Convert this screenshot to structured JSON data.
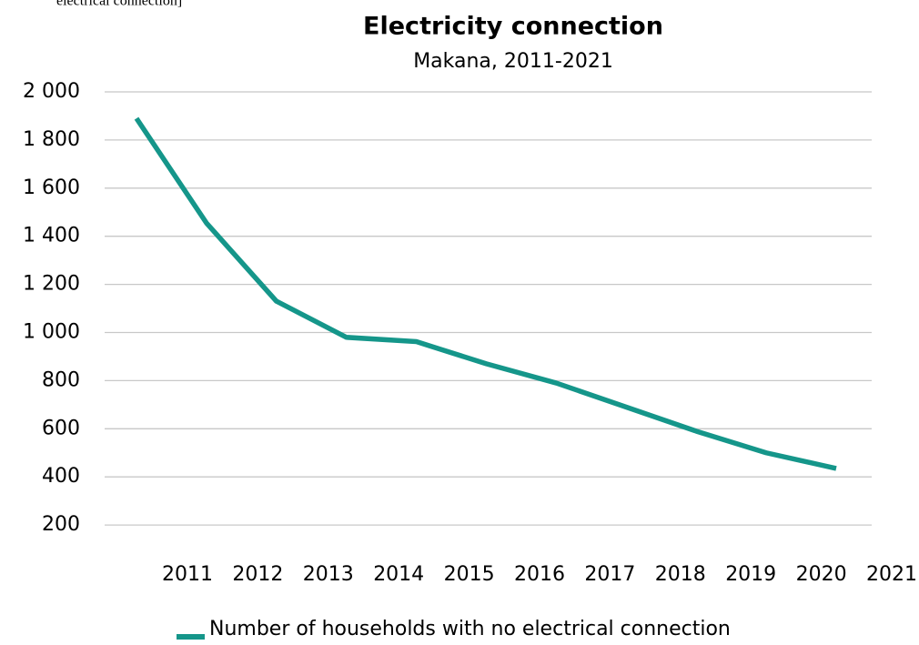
{
  "chart_data": {
    "type": "line",
    "note": "electrical connection]",
    "title": "Electricity connection",
    "subtitle": "Makana, 2011-2021",
    "categories": [
      "2011",
      "2012",
      "2013",
      "2014",
      "2015",
      "2016",
      "2017",
      "2018",
      "2019",
      "2020",
      "2021"
    ],
    "series": [
      {
        "name": "Number of households with no electrical connection",
        "color": "#15968a",
        "values": [
          1890,
          1455,
          1130,
          980,
          962,
          870,
          790,
          690,
          590,
          500,
          435
        ]
      }
    ],
    "ylim": [
      0,
      2000
    ],
    "yticks": [
      {
        "value": 200,
        "label": "200"
      },
      {
        "value": 400,
        "label": "400"
      },
      {
        "value": 600,
        "label": "600"
      },
      {
        "value": 800,
        "label": "800"
      },
      {
        "value": 1000,
        "label": "1 000"
      },
      {
        "value": 1200,
        "label": "1 200"
      },
      {
        "value": 1400,
        "label": "1 400"
      },
      {
        "value": 1600,
        "label": "1 600"
      },
      {
        "value": 1800,
        "label": "1 800"
      },
      {
        "value": 2000,
        "label": "2 000"
      }
    ],
    "grid": true,
    "legend": "bottom"
  }
}
